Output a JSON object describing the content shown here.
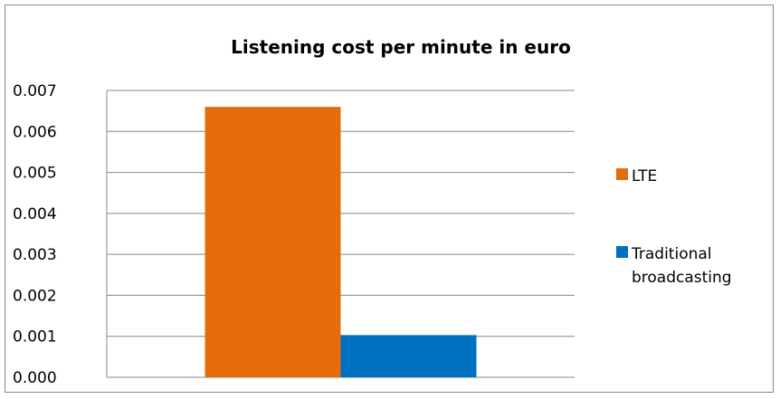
{
  "chart_data": {
    "type": "bar",
    "title": "Listening cost per minute in euro",
    "xlabel": "",
    "ylabel": "",
    "categories": [
      ""
    ],
    "series": [
      {
        "name": "LTE",
        "values": [
          0.0066
        ],
        "color": "#E46C0A"
      },
      {
        "name": "Traditional broadcasting",
        "values": [
          0.00103
        ],
        "color": "#0070C0"
      }
    ],
    "ylim": [
      0,
      0.007
    ],
    "yticks": [
      "0.000",
      "0.001",
      "0.002",
      "0.003",
      "0.004",
      "0.005",
      "0.006",
      "0.007"
    ],
    "grid": true,
    "legend_position": "right",
    "legend_lines": [
      [
        "LTE"
      ],
      [
        "Traditional",
        "broadcasting"
      ]
    ]
  }
}
